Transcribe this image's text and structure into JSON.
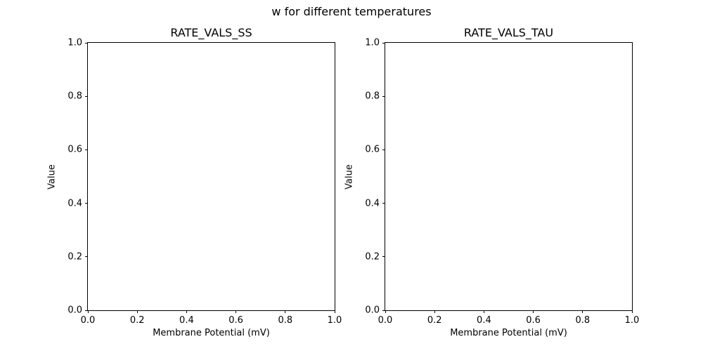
{
  "figure": {
    "title": "w for different temperatures",
    "background_color": "#ffffff",
    "text_color": "#000000",
    "spine_color": "#000000"
  },
  "chart_data": [
    {
      "type": "line",
      "title": "RATE_VALS_SS",
      "xlabel": "Membrane Potential (mV)",
      "ylabel": "Value",
      "xlim": [
        0.0,
        1.0
      ],
      "ylim": [
        0.0,
        1.0
      ],
      "xticks": [
        0.0,
        0.2,
        0.4,
        0.6,
        0.8,
        1.0
      ],
      "yticks": [
        0.0,
        0.2,
        0.4,
        0.6,
        0.8,
        1.0
      ],
      "xtick_labels": [
        "0.0",
        "0.2",
        "0.4",
        "0.6",
        "0.8",
        "1.0"
      ],
      "ytick_labels": [
        "0.0",
        "0.2",
        "0.4",
        "0.6",
        "0.8",
        "1.0"
      ],
      "series": [],
      "grid": false,
      "legend": false
    },
    {
      "type": "line",
      "title": "RATE_VALS_TAU",
      "xlabel": "Membrane Potential (mV)",
      "ylabel": "Value",
      "xlim": [
        0.0,
        1.0
      ],
      "ylim": [
        0.0,
        1.0
      ],
      "xticks": [
        0.0,
        0.2,
        0.4,
        0.6,
        0.8,
        1.0
      ],
      "yticks": [
        0.0,
        0.2,
        0.4,
        0.6,
        0.8,
        1.0
      ],
      "xtick_labels": [
        "0.0",
        "0.2",
        "0.4",
        "0.6",
        "0.8",
        "1.0"
      ],
      "ytick_labels": [
        "0.0",
        "0.2",
        "0.4",
        "0.6",
        "0.8",
        "1.0"
      ],
      "series": [],
      "grid": false,
      "legend": false
    }
  ]
}
